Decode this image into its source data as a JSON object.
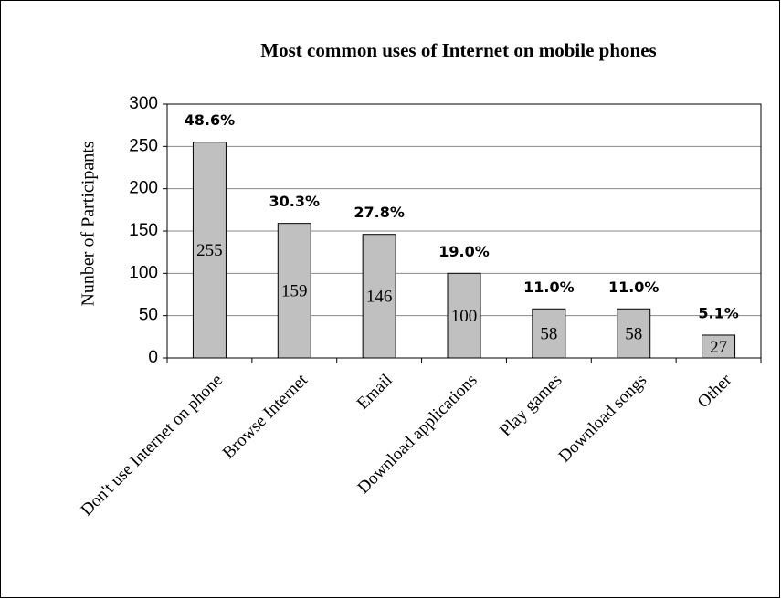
{
  "chart_data": {
    "type": "bar",
    "title": "Most common uses of Internet on mobile phones",
    "y_label": "Nunber of Participants",
    "categories": [
      "Don't use Internet on phone",
      "Browse Internet",
      "Email",
      "Download applications",
      "Play games",
      "Download songs",
      "Other"
    ],
    "values": [
      255,
      159,
      146,
      100,
      58,
      58,
      27
    ],
    "percent_labels": [
      "48.6%",
      "30.3%",
      "27.8%",
      "19.0%",
      "11.0%",
      "11.0%",
      "5.1%"
    ],
    "color": "#c0c0c0",
    "ylim": [
      0,
      300
    ],
    "yticks": [
      0,
      50,
      100,
      150,
      200,
      250,
      300
    ],
    "grid": true
  }
}
